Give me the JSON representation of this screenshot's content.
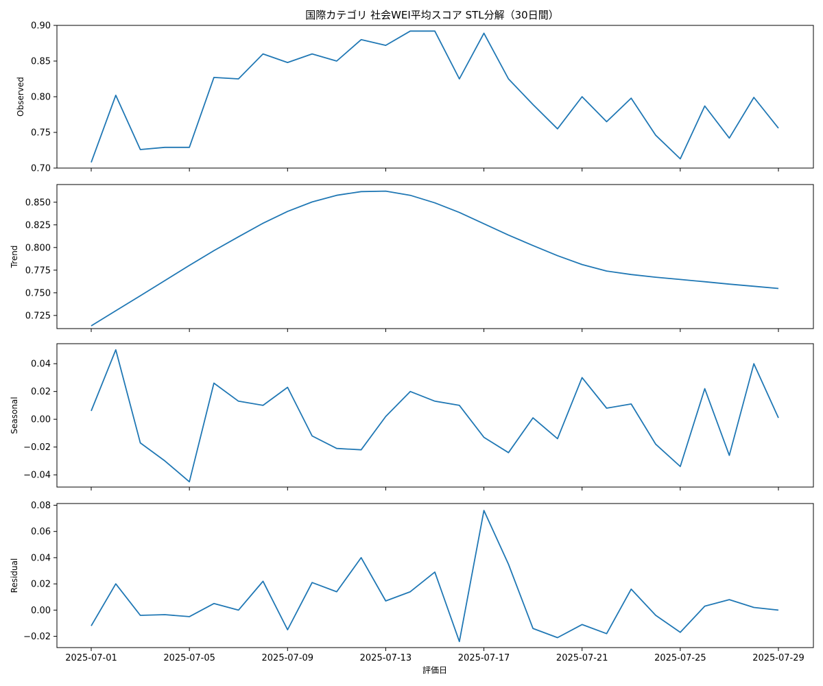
{
  "chart_data": {
    "type": "line",
    "title": "国際カテゴリ 社会WEI平均スコア STL分解（30日間）",
    "xlabel": "評価日",
    "line_color": "#1f77b4",
    "x": [
      "2025-07-01",
      "2025-07-02",
      "2025-07-03",
      "2025-07-04",
      "2025-07-05",
      "2025-07-06",
      "2025-07-07",
      "2025-07-08",
      "2025-07-09",
      "2025-07-10",
      "2025-07-11",
      "2025-07-12",
      "2025-07-13",
      "2025-07-14",
      "2025-07-15",
      "2025-07-16",
      "2025-07-17",
      "2025-07-18",
      "2025-07-19",
      "2025-07-20",
      "2025-07-21",
      "2025-07-22",
      "2025-07-23",
      "2025-07-24",
      "2025-07-25",
      "2025-07-26",
      "2025-07-27",
      "2025-07-28",
      "2025-07-29"
    ],
    "x_ticks": [
      "2025-07-01",
      "2025-07-05",
      "2025-07-09",
      "2025-07-13",
      "2025-07-17",
      "2025-07-21",
      "2025-07-25",
      "2025-07-29"
    ],
    "panels": [
      {
        "name": "Observed",
        "ylabel": "Observed",
        "ylim": [
          0.7,
          0.9
        ],
        "yticks": [
          "0.70",
          "0.75",
          "0.80",
          "0.85",
          "0.90"
        ],
        "values": [
          0.708,
          0.802,
          0.726,
          0.729,
          0.729,
          0.827,
          0.825,
          0.86,
          0.848,
          0.86,
          0.85,
          0.88,
          0.872,
          0.892,
          0.892,
          0.825,
          0.889,
          0.825,
          0.789,
          0.755,
          0.8,
          0.765,
          0.798,
          0.746,
          0.713,
          0.787,
          0.742,
          0.799,
          0.756
        ]
      },
      {
        "name": "Trend",
        "ylabel": "Trend",
        "ylim": [
          0.7105,
          0.8695
        ],
        "yticks": [
          "0.725",
          "0.750",
          "0.775",
          "0.800",
          "0.825",
          "0.850"
        ],
        "values": [
          0.7135,
          0.7302,
          0.7468,
          0.7635,
          0.7802,
          0.7965,
          0.8118,
          0.8268,
          0.8398,
          0.8503,
          0.8576,
          0.8617,
          0.8622,
          0.8576,
          0.8493,
          0.8387,
          0.8262,
          0.8137,
          0.8022,
          0.791,
          0.7812,
          0.774,
          0.7702,
          0.7672,
          0.7647,
          0.7622,
          0.7596,
          0.7572,
          0.7548
        ]
      },
      {
        "name": "Seasonal",
        "ylabel": "Seasonal",
        "ylim": [
          -0.0488,
          0.0544
        ],
        "yticks": [
          "−0.04",
          "−0.02",
          "0.00",
          "0.02",
          "0.04"
        ],
        "values": [
          0.006,
          0.05,
          -0.017,
          -0.03,
          -0.045,
          0.026,
          0.013,
          0.01,
          0.023,
          -0.012,
          -0.021,
          -0.022,
          0.002,
          0.02,
          0.013,
          0.01,
          -0.013,
          -0.024,
          0.001,
          -0.014,
          0.03,
          0.008,
          0.011,
          -0.018,
          -0.034,
          0.022,
          -0.026,
          0.04,
          0.001
        ]
      },
      {
        "name": "Residual",
        "ylabel": "Residual",
        "ylim": [
          -0.0286,
          0.0813
        ],
        "yticks": [
          "−0.02",
          "0.00",
          "0.02",
          "0.04",
          "0.06",
          "0.08"
        ],
        "values": [
          -0.012,
          0.02,
          -0.004,
          -0.0035,
          -0.005,
          0.005,
          0.0,
          0.022,
          -0.015,
          0.021,
          0.014,
          0.04,
          0.007,
          0.014,
          0.029,
          -0.024,
          0.076,
          0.035,
          -0.014,
          -0.021,
          -0.011,
          -0.018,
          0.016,
          -0.004,
          -0.017,
          0.003,
          0.008,
          0.002,
          0.0
        ]
      }
    ]
  }
}
